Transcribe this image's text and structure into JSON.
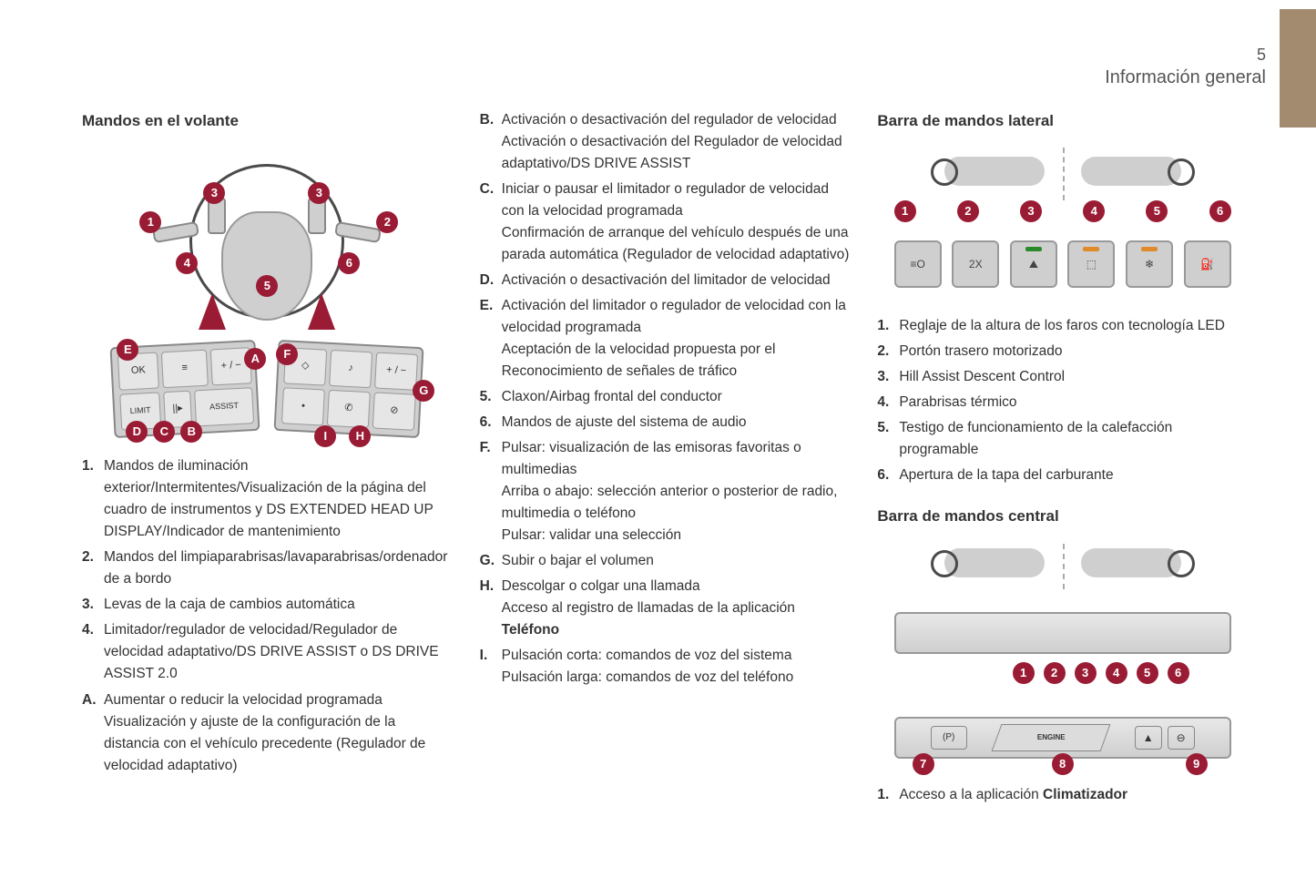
{
  "page": {
    "number": "5",
    "section": "Información general"
  },
  "colors": {
    "accent": "#9a1b34",
    "tab": "#a28b6f",
    "panel": "#cfcfcf",
    "text": "#333333"
  },
  "col1": {
    "heading": "Mandos en el volante",
    "fig": {
      "callouts_wheel": [
        "1",
        "2",
        "3",
        "3",
        "4",
        "5",
        "6"
      ],
      "callouts_pad_left": [
        "A",
        "B",
        "C",
        "D",
        "E"
      ],
      "callouts_pad_right": [
        "F",
        "G",
        "H",
        "I"
      ],
      "pad_left_labels": {
        "ok": "OK",
        "limit": "LIMIT",
        "assist": "ASSIST"
      }
    },
    "list": [
      {
        "n": "1.",
        "t": "Mandos de iluminación exterior/Intermitentes/Visualización de la página del cuadro de instrumentos y DS EXTENDED HEAD UP DISPLAY/Indicador de mantenimiento"
      },
      {
        "n": "2.",
        "t": "Mandos del limpiaparabrisas/lavaparabrisas/ordenador de a bordo"
      },
      {
        "n": "3.",
        "t": "Levas de la caja de cambios automática"
      },
      {
        "n": "4.",
        "t": "Limitador/regulador de velocidad/Regulador de velocidad adaptativo/DS DRIVE ASSIST o DS DRIVE ASSIST 2.0"
      },
      {
        "n": "A.",
        "t": "Aumentar o reducir la velocidad programada Visualización y ajuste de la configuración de la distancia con el vehículo precedente (Regulador de velocidad adaptativo)"
      }
    ]
  },
  "col2": {
    "list": [
      {
        "n": "B.",
        "t": "Activación o desactivación del regulador de velocidad\nActivación o desactivación del Regulador de velocidad adaptativo/DS DRIVE ASSIST"
      },
      {
        "n": "C.",
        "t": "Iniciar o pausar el limitador o regulador de velocidad con la velocidad programada\nConfirmación de arranque del vehículo después de una parada automática (Regulador de velocidad adaptativo)"
      },
      {
        "n": "D.",
        "t": "Activación o desactivación del limitador de velocidad"
      },
      {
        "n": "E.",
        "t": "Activación del limitador o regulador de velocidad con la velocidad programada\nAceptación de la velocidad propuesta por el Reconocimiento de señales de tráfico"
      },
      {
        "n": "5.",
        "t": "Claxon/Airbag frontal del conductor"
      },
      {
        "n": "6.",
        "t": "Mandos de ajuste del sistema de audio"
      },
      {
        "n": "F.",
        "t": "Pulsar: visualización de las emisoras favoritas o multimedias\nArriba o abajo: selección anterior o posterior de radio, multimedia o teléfono\nPulsar: validar una selección"
      },
      {
        "n": "G.",
        "t": "Subir o bajar el volumen"
      },
      {
        "n": "H.",
        "t": "Descolgar o colgar una llamada\nAcceso al registro de llamadas de la aplicación ",
        "bold": "Teléfono"
      },
      {
        "n": "I.",
        "t": "Pulsación corta: comandos de voz del sistema\nPulsación larga: comandos de voz del teléfono"
      }
    ]
  },
  "col3": {
    "heading1": "Barra de mandos lateral",
    "fig2": {
      "switch_nums": [
        "1",
        "2",
        "3",
        "4",
        "5",
        "6"
      ],
      "switch_labels": [
        "≡O",
        "2X",
        "⛰",
        "⬚",
        "❄",
        "⛽"
      ],
      "indicators": [
        "",
        "",
        "#2a8a2a",
        "#e08a2a",
        "#e08a2a",
        ""
      ]
    },
    "list1": [
      {
        "n": "1.",
        "t": "Reglaje de la altura de los faros con tecnología LED"
      },
      {
        "n": "2.",
        "t": "Portón trasero motorizado"
      },
      {
        "n": "3.",
        "t": "Hill Assist Descent Control"
      },
      {
        "n": "4.",
        "t": "Parabrisas térmico"
      },
      {
        "n": "5.",
        "t": "Testigo de funcionamiento de la calefacción programable"
      },
      {
        "n": "6.",
        "t": "Apertura de la tapa del carburante"
      }
    ],
    "heading2": "Barra de mandos central",
    "fig3": {
      "top_nums": [
        "1",
        "2",
        "3",
        "4",
        "5",
        "6"
      ],
      "bottom_nums": [
        "7",
        "8",
        "9"
      ],
      "engine_label": "ENGINE",
      "pbrake": "(P)",
      "hazard": "▲"
    },
    "list2": [
      {
        "n": "1.",
        "t": "Acceso a la aplicación ",
        "bold": "Climatizador"
      }
    ]
  }
}
